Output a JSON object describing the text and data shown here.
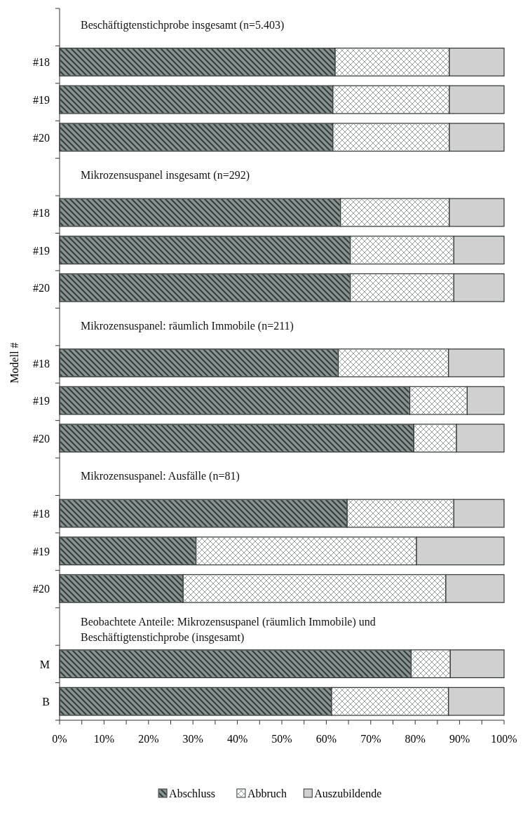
{
  "chart_data": {
    "type": "bar",
    "orientation": "horizontal",
    "stacked": true,
    "ylabel": "Modell #",
    "categories": [
      null,
      "#18",
      "#19",
      "#20",
      null,
      "#18",
      "#19",
      "#20",
      null,
      "#18",
      "#19",
      "#20",
      null,
      "#18",
      "#19",
      "#20",
      null,
      "M",
      "B"
    ],
    "series": [
      {
        "name": "Abschluss",
        "color": "#8a9190",
        "values": [
          null,
          62,
          61.5,
          61.5,
          null,
          63.2,
          65.4,
          65.4,
          null,
          62.7,
          78.8,
          79.7,
          null,
          64.7,
          30.7,
          27.8,
          null,
          79.1,
          61.2
        ]
      },
      {
        "name": "Abbruch",
        "color": "#ffffff",
        "values": [
          null,
          25.7,
          26.2,
          26.2,
          null,
          24.5,
          23.3,
          23.3,
          null,
          24.8,
          12.9,
          9.6,
          null,
          24,
          49.6,
          59.1,
          null,
          8.8,
          26.3
        ]
      },
      {
        "name": "Auszubildende",
        "color": "#d0d0d0",
        "values": [
          null,
          12.3,
          12.3,
          12.3,
          null,
          12.3,
          11.3,
          11.3,
          null,
          12.5,
          8.3,
          10.7,
          null,
          11.3,
          19.7,
          13.1,
          null,
          12.1,
          12.5
        ]
      }
    ],
    "annotations": [
      "Beschäftigtenstichprobe insgesamt (n=5.403)",
      "Mikrozensuspanel insgesamt (n=292)",
      "Mikrozensuspanel: räumlich Immobile (n=211)",
      "Mikrozensuspanel: Ausfälle (n=81)",
      "Beobachtete Anteile: Mikrozensuspanel (räumlich Immobile) und Beschäftigtenstichprobe (insgesamt)"
    ],
    "xlim": [
      0,
      100
    ],
    "xticks": [
      {
        "value": 0,
        "label": "0%"
      },
      {
        "value": 5,
        "label": null
      },
      {
        "value": 10,
        "label": "10%"
      },
      {
        "value": 15,
        "label": null
      },
      {
        "value": 20,
        "label": "20%"
      },
      {
        "value": 25,
        "label": null
      },
      {
        "value": 30,
        "label": "30%"
      },
      {
        "value": 35,
        "label": null
      },
      {
        "value": 40,
        "label": "40%"
      },
      {
        "value": 45,
        "label": null
      },
      {
        "value": 50,
        "label": "50%"
      },
      {
        "value": 55,
        "label": null
      },
      {
        "value": 60,
        "label": "60%"
      },
      {
        "value": 65,
        "label": null
      },
      {
        "value": 70,
        "label": "70%"
      },
      {
        "value": 75,
        "label": null
      },
      {
        "value": 80,
        "label": "80%"
      },
      {
        "value": 85,
        "label": null
      },
      {
        "value": 90,
        "label": "90%"
      },
      {
        "value": 95,
        "label": null
      },
      {
        "value": 100,
        "label": "100%"
      }
    ],
    "legend": "bottom",
    "grid": false
  }
}
